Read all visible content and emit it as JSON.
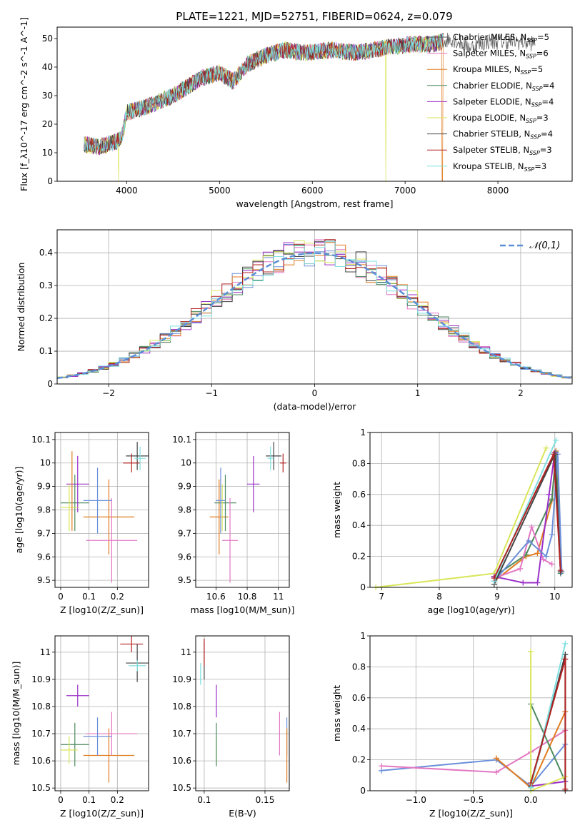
{
  "figure_title": "PLATE=1221, MJD=52751, FIBERID=0624, z=0.079",
  "colors": {
    "c0": "#555555",
    "c1": "#e377c2",
    "c2": "#e07b1f",
    "c3": "#4d8a5e",
    "c4": "#9b30c8",
    "c5": "#d9e65a",
    "c6": "#444444",
    "c7": "#b22222",
    "c8": "#7fe0e0",
    "c9": "#6a8fd9",
    "normal": "#5b8fd6",
    "grid": "#b0b0b0"
  },
  "legend_spectrum": [
    "Chabrier MILES, N_SSP=5",
    "Salpeter MILES, N_SSP=6",
    "Kroupa MILES, N_SSP=5",
    "Chabrier ELODIE, N_SSP=4",
    "Salpeter ELODIE, N_SSP=4",
    "Kroupa ELODIE, N_SSP=3",
    "Chabrier STELIB, N_SSP=4",
    "Salpeter STELIB, N_SSP=3",
    "Kroupa STELIB, N_SSP=3"
  ],
  "chart_data": [
    {
      "id": "spectrum",
      "type": "line",
      "xlabel": "wavelength [Angstrom, rest frame]",
      "ylabel": "Flux [f_λ10^-17 erg cm^-2 s^-1 A^-1]",
      "xlim": [
        3250,
        8800
      ],
      "ylim": [
        0,
        54
      ],
      "xticks": [
        4000,
        5000,
        6000,
        7000,
        8000
      ],
      "yticks": [
        0,
        10,
        20,
        30,
        40,
        50
      ],
      "continuum": [
        [
          3550,
          13
        ],
        [
          3700,
          12
        ],
        [
          3900,
          14
        ],
        [
          3950,
          16
        ],
        [
          4000,
          24
        ],
        [
          4200,
          26
        ],
        [
          4500,
          30
        ],
        [
          4800,
          36
        ],
        [
          5000,
          38
        ],
        [
          5150,
          35
        ],
        [
          5300,
          41
        ],
        [
          5500,
          44
        ],
        [
          5700,
          46
        ],
        [
          5900,
          45
        ],
        [
          6200,
          46
        ],
        [
          6500,
          45
        ],
        [
          6800,
          47
        ],
        [
          7100,
          48
        ],
        [
          7300,
          48
        ],
        [
          7500,
          50
        ],
        [
          7700,
          47
        ],
        [
          7900,
          49
        ],
        [
          8200,
          49
        ],
        [
          8500,
          48
        ]
      ],
      "drops": [
        [
          3910,
          0
        ],
        [
          6790,
          0
        ],
        [
          7400,
          0
        ]
      ],
      "grid": false
    },
    {
      "id": "residual_hist",
      "type": "bar",
      "xlabel": "(data-model)/error",
      "ylabel": "Normed distribution",
      "xlim": [
        -2.5,
        2.5
      ],
      "ylim": [
        0,
        0.47
      ],
      "xticks": [
        -2,
        -1,
        0,
        1,
        2
      ],
      "yticks": [
        0.0,
        0.1,
        0.2,
        0.3,
        0.4
      ],
      "bin_width": 0.1,
      "legend": "𝒩(0,1)",
      "grid": true
    },
    {
      "id": "age_vs_Z",
      "type": "scatter",
      "xlabel": "Z [log10(Z/Z_sun)]",
      "ylabel": "age [log10(age/yr)]",
      "xlim": [
        -0.02,
        0.31
      ],
      "ylim": [
        9.47,
        10.13
      ],
      "xticks": [
        0.0,
        0.1,
        0.2
      ],
      "yticks": [
        9.5,
        9.6,
        9.7,
        9.8,
        9.9,
        10.0,
        10.1
      ],
      "points": [
        {
          "c": "c2",
          "x": 0.17,
          "xe": 0.09,
          "y": 9.77,
          "ye": 0.16
        },
        {
          "c": "c3",
          "x": 0.05,
          "xe": 0.05,
          "y": 9.83,
          "ye": 0.12
        },
        {
          "c": "c4",
          "x": 0.06,
          "xe": 0.04,
          "y": 9.91,
          "ye": 0.12
        },
        {
          "c": "c5",
          "x": 0.03,
          "xe": 0.03,
          "y": 9.81,
          "ye": 0.1
        },
        {
          "c": "c1",
          "x": 0.18,
          "xe": 0.09,
          "y": 9.67,
          "ye": 0.18
        },
        {
          "c": "c9",
          "x": 0.13,
          "xe": 0.05,
          "y": 9.84,
          "ye": 0.14
        },
        {
          "c": "c6",
          "x": 0.27,
          "xe": 0.04,
          "y": 10.03,
          "ye": 0.06
        },
        {
          "c": "c7",
          "x": 0.25,
          "xe": 0.03,
          "y": 10.0,
          "ye": 0.04
        },
        {
          "c": "c8",
          "x": 0.28,
          "xe": 0.02,
          "y": 10.02,
          "ye": 0.05
        },
        {
          "c": "c2",
          "x": 0.04,
          "xe": 0.0,
          "y": 9.88,
          "ye": 0.17
        }
      ]
    },
    {
      "id": "age_vs_mass",
      "type": "scatter",
      "xlabel": "mass [log10(M/M_sun)]",
      "ylabel": "",
      "xlim": [
        10.47,
        11.07
      ],
      "ylim": [
        9.47,
        10.13
      ],
      "xticks": [
        10.6,
        10.8,
        11.0
      ],
      "yticks": [
        9.5,
        9.6,
        9.7,
        9.8,
        9.9,
        10.0,
        10.1
      ],
      "points": [
        {
          "c": "c2",
          "x": 10.62,
          "xe": 0.06,
          "y": 9.77,
          "ye": 0.16
        },
        {
          "c": "c3",
          "x": 10.66,
          "xe": 0.07,
          "y": 9.83,
          "ye": 0.12
        },
        {
          "c": "c4",
          "x": 10.84,
          "xe": 0.04,
          "y": 9.91,
          "ye": 0.12
        },
        {
          "c": "c5",
          "x": 10.64,
          "xe": 0.0,
          "y": 9.81,
          "ye": 0.1
        },
        {
          "c": "c1",
          "x": 10.69,
          "xe": 0.05,
          "y": 9.67,
          "ye": 0.18
        },
        {
          "c": "c9",
          "x": 10.63,
          "xe": 0.03,
          "y": 9.84,
          "ye": 0.14
        },
        {
          "c": "c6",
          "x": 10.97,
          "xe": 0.05,
          "y": 10.03,
          "ye": 0.06
        },
        {
          "c": "c7",
          "x": 11.03,
          "xe": 0.02,
          "y": 10.0,
          "ye": 0.04
        },
        {
          "c": "c8",
          "x": 10.95,
          "xe": 0.02,
          "y": 10.02,
          "ye": 0.05
        }
      ]
    },
    {
      "id": "weight_vs_age",
      "type": "line",
      "xlabel": "age [log10(age/yr)]",
      "ylabel": "mass weight",
      "xlim": [
        6.8,
        10.3
      ],
      "ylim": [
        0,
        1.0
      ],
      "xticks": [
        7,
        8,
        9,
        10
      ],
      "yticks": [
        0.0,
        0.2,
        0.4,
        0.6,
        0.8,
        1.0
      ],
      "series": [
        {
          "c": "c5",
          "pts": [
            [
              6.9,
              0.0
            ],
            [
              8.95,
              0.09
            ],
            [
              9.85,
              0.9
            ]
          ]
        },
        {
          "c": "c2",
          "pts": [
            [
              8.95,
              0.04
            ],
            [
              9.5,
              0.2
            ],
            [
              9.7,
              0.22
            ],
            [
              9.95,
              0.56
            ],
            [
              10.02,
              0.88
            ],
            [
              10.1,
              0.1
            ]
          ]
        },
        {
          "c": "c3",
          "pts": [
            [
              8.95,
              0.07
            ],
            [
              9.5,
              0.21
            ],
            [
              9.95,
              0.57
            ],
            [
              10.02,
              0.87
            ],
            [
              10.1,
              0.09
            ]
          ]
        },
        {
          "c": "c1",
          "pts": [
            [
              8.95,
              0.06
            ],
            [
              9.4,
              0.12
            ],
            [
              9.6,
              0.39
            ],
            [
              9.8,
              0.18
            ],
            [
              9.95,
              0.15
            ]
          ]
        },
        {
          "c": "c4",
          "pts": [
            [
              8.95,
              0.07
            ],
            [
              9.45,
              0.03
            ],
            [
              9.7,
              0.03
            ],
            [
              9.9,
              0.6
            ],
            [
              10.0,
              0.87
            ],
            [
              10.1,
              0.1
            ]
          ]
        },
        {
          "c": "c9",
          "pts": [
            [
              8.95,
              0.04
            ],
            [
              9.55,
              0.3
            ],
            [
              9.85,
              0.2
            ],
            [
              9.95,
              0.34
            ],
            [
              10.05,
              0.86
            ],
            [
              10.12,
              0.1
            ]
          ]
        },
        {
          "c": "c6",
          "pts": [
            [
              8.95,
              0.02
            ],
            [
              10.0,
              0.86
            ],
            [
              10.1,
              0.1
            ]
          ]
        },
        {
          "c": "c8",
          "pts": [
            [
              8.95,
              0.04
            ],
            [
              10.02,
              0.95
            ]
          ]
        },
        {
          "c": "c7",
          "pts": [
            [
              8.95,
              0.06
            ],
            [
              9.98,
              0.86
            ],
            [
              10.1,
              0.11
            ]
          ]
        }
      ]
    },
    {
      "id": "mass_vs_Z",
      "type": "scatter",
      "xlabel": "Z [log10(Z/Z_sun)]",
      "ylabel": "mass [log10(M/M_sun)]",
      "xlim": [
        -0.02,
        0.31
      ],
      "ylim": [
        10.49,
        11.06
      ],
      "xticks": [
        0.0,
        0.1,
        0.2
      ],
      "yticks": [
        10.5,
        10.6,
        10.7,
        10.8,
        10.9,
        11.0
      ],
      "points": [
        {
          "c": "c2",
          "x": 0.17,
          "xe": 0.09,
          "y": 10.62,
          "ye": 0.1
        },
        {
          "c": "c3",
          "x": 0.05,
          "xe": 0.05,
          "y": 10.66,
          "ye": 0.08
        },
        {
          "c": "c4",
          "x": 0.06,
          "xe": 0.04,
          "y": 10.84,
          "ye": 0.04
        },
        {
          "c": "c5",
          "x": 0.03,
          "xe": 0.03,
          "y": 10.64,
          "ye": 0.05
        },
        {
          "c": "c1",
          "x": 0.18,
          "xe": 0.09,
          "y": 10.7,
          "ye": 0.08
        },
        {
          "c": "c9",
          "x": 0.13,
          "xe": 0.05,
          "y": 10.69,
          "ye": 0.07
        },
        {
          "c": "c6",
          "x": 0.27,
          "xe": 0.04,
          "y": 10.96,
          "ye": 0.07
        },
        {
          "c": "c7",
          "x": 0.25,
          "xe": 0.04,
          "y": 11.03,
          "ye": 0.03
        },
        {
          "c": "c8",
          "x": 0.27,
          "xe": 0.03,
          "y": 10.95,
          "ye": 0.02
        }
      ]
    },
    {
      "id": "mass_vs_ebv",
      "type": "scatter",
      "xlabel": "E(B-V)",
      "ylabel": "",
      "xlim": [
        0.093,
        0.17
      ],
      "ylim": [
        10.49,
        11.06
      ],
      "xticks": [
        0.1,
        0.15
      ],
      "yticks": [
        10.5,
        10.6,
        10.7,
        10.8,
        10.9,
        11.0
      ],
      "points": [
        {
          "c": "c8",
          "x": 0.097,
          "xe": 0,
          "y": 10.92,
          "ye": 0.04
        },
        {
          "c": "c6",
          "x": 0.1,
          "xe": 0,
          "y": 10.97,
          "ye": 0.07
        },
        {
          "c": "c7",
          "x": 0.1,
          "xe": 0,
          "y": 11.0,
          "ye": 0.05
        },
        {
          "c": "c4",
          "x": 0.11,
          "xe": 0,
          "y": 10.82,
          "ye": 0.06
        },
        {
          "c": "c5",
          "x": 0.11,
          "xe": 0,
          "y": 10.64,
          "ye": 0.05
        },
        {
          "c": "c3",
          "x": 0.11,
          "xe": 0,
          "y": 10.66,
          "ye": 0.08
        },
        {
          "c": "c1",
          "x": 0.162,
          "xe": 0,
          "y": 10.7,
          "ye": 0.08
        },
        {
          "c": "c9",
          "x": 0.168,
          "xe": 0,
          "y": 10.69,
          "ye": 0.07
        },
        {
          "c": "c2",
          "x": 0.168,
          "xe": 0,
          "y": 10.62,
          "ye": 0.1
        }
      ]
    },
    {
      "id": "weight_vs_Z",
      "type": "line",
      "xlabel": "Z [log10(Z/Z_sun)]",
      "ylabel": "mass weight",
      "xlim": [
        -1.4,
        0.36
      ],
      "ylim": [
        0,
        1.0
      ],
      "xticks": [
        -1.0,
        -0.5,
        0.0
      ],
      "yticks": [
        0.0,
        0.2,
        0.4,
        0.6,
        0.8,
        1.0
      ],
      "xticklabels": [
        "−1.0",
        "−0.5",
        "0.0"
      ],
      "series": [
        {
          "c": "c9",
          "pts": [
            [
              -1.3,
              0.13
            ],
            [
              -0.3,
              0.2
            ],
            [
              0.0,
              0.03
            ],
            [
              0.3,
              0.3
            ]
          ]
        },
        {
          "c": "c1",
          "pts": [
            [
              -1.3,
              0.16
            ],
            [
              -0.3,
              0.12
            ],
            [
              0.0,
              0.25
            ],
            [
              0.3,
              0.39
            ]
          ]
        },
        {
          "c": "c2",
          "pts": [
            [
              -0.3,
              0.21
            ],
            [
              0.0,
              0.02
            ],
            [
              0.3,
              0.51
            ]
          ]
        },
        {
          "c": "c3",
          "pts": [
            [
              0.0,
              0.56
            ],
            [
              0.3,
              0.06
            ]
          ]
        },
        {
          "c": "c4",
          "pts": [
            [
              0.0,
              0.03
            ],
            [
              0.3,
              0.06
            ]
          ]
        },
        {
          "c": "c5",
          "pts": [
            [
              0.0,
              0.9
            ],
            [
              0.0,
              0.0
            ],
            [
              0.3,
              0.09
            ]
          ]
        },
        {
          "c": "c6",
          "pts": [
            [
              0.0,
              0.03
            ],
            [
              0.3,
              0.88
            ],
            [
              0.3,
              0.0
            ]
          ]
        },
        {
          "c": "c8",
          "pts": [
            [
              0.0,
              0.02
            ],
            [
              0.3,
              0.95
            ]
          ]
        },
        {
          "c": "c7",
          "pts": [
            [
              0.0,
              0.05
            ],
            [
              0.3,
              0.85
            ],
            [
              0.3,
              0.01
            ]
          ]
        }
      ]
    }
  ]
}
